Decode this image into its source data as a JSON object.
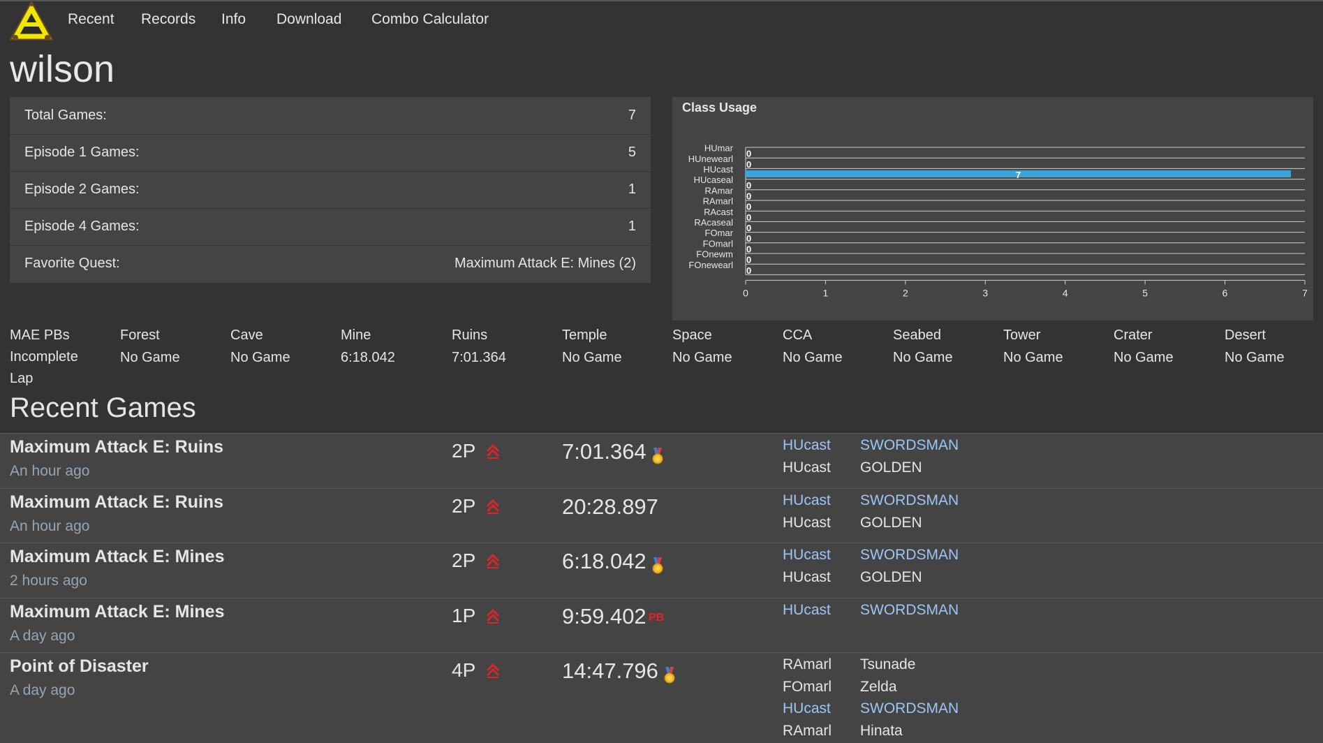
{
  "nav": {
    "items": [
      "Recent",
      "Records",
      "Info",
      "Download",
      "Combo Calculator"
    ]
  },
  "player": {
    "name": "wilson"
  },
  "stats": [
    {
      "label": "Total Games:",
      "value": "7"
    },
    {
      "label": "Episode 1 Games:",
      "value": "5"
    },
    {
      "label": "Episode 2 Games:",
      "value": "1"
    },
    {
      "label": "Episode 4 Games:",
      "value": "1"
    },
    {
      "label": "Favorite Quest:",
      "value": "Maximum Attack E: Mines (2)"
    }
  ],
  "chart_data": {
    "type": "bar",
    "orientation": "horizontal",
    "title": "Class Usage",
    "categories": [
      "HUmar",
      "HUnewearl",
      "HUcast",
      "HUcaseal",
      "RAmar",
      "RAmarl",
      "RAcast",
      "RAcaseal",
      "FOmar",
      "FOmarl",
      "FOnewm",
      "FOnewearl"
    ],
    "values": [
      0,
      0,
      7,
      0,
      0,
      0,
      0,
      0,
      0,
      0,
      0,
      0
    ],
    "xlim": [
      0,
      7
    ],
    "xticks": [
      "0",
      "1",
      "2",
      "3",
      "4",
      "5",
      "6",
      "7"
    ],
    "bar_color": "#3aa5d8",
    "grid": true
  },
  "pbs": {
    "header": [
      "MAE PBs",
      "Forest",
      "Cave",
      "Mine",
      "Ruins",
      "Temple",
      "Space",
      "CCA",
      "Seabed",
      "Tower",
      "Crater",
      "Desert"
    ],
    "values": [
      "Incomplete Lap",
      "No Game",
      "No Game",
      "6:18.042",
      "7:01.364",
      "No Game",
      "No Game",
      "No Game",
      "No Game",
      "No Game",
      "No Game",
      "No Game"
    ]
  },
  "recent": {
    "title": "Recent Games",
    "games": [
      {
        "quest": "Maximum Attack E: Ruins",
        "ago": "An hour ago",
        "players": "2P",
        "time": "7:01.364",
        "badge": "medal",
        "party": [
          {
            "cls": "HUcast",
            "name": "SWORDSMAN",
            "link": true
          },
          {
            "cls": "HUcast",
            "name": "GOLDEN",
            "link": false
          }
        ]
      },
      {
        "quest": "Maximum Attack E: Ruins",
        "ago": "An hour ago",
        "players": "2P",
        "time": "20:28.897",
        "badge": "",
        "party": [
          {
            "cls": "HUcast",
            "name": "SWORDSMAN",
            "link": true
          },
          {
            "cls": "HUcast",
            "name": "GOLDEN",
            "link": false
          }
        ]
      },
      {
        "quest": "Maximum Attack E: Mines",
        "ago": "2 hours ago",
        "players": "2P",
        "time": "6:18.042",
        "badge": "medal",
        "party": [
          {
            "cls": "HUcast",
            "name": "SWORDSMAN",
            "link": true
          },
          {
            "cls": "HUcast",
            "name": "GOLDEN",
            "link": false
          }
        ]
      },
      {
        "quest": "Maximum Attack E: Mines",
        "ago": "A day ago",
        "players": "1P",
        "time": "9:59.402",
        "badge": "PB",
        "party": [
          {
            "cls": "HUcast",
            "name": "SWORDSMAN",
            "link": true
          }
        ]
      },
      {
        "quest": "Point of Disaster",
        "ago": "A day ago",
        "players": "4P",
        "time": "14:47.796",
        "badge": "medal",
        "party": [
          {
            "cls": "RAmarl",
            "name": "Tsunade",
            "link": false
          },
          {
            "cls": "FOmarl",
            "name": "Zelda",
            "link": false
          },
          {
            "cls": "HUcast",
            "name": "SWORDSMAN",
            "link": true
          },
          {
            "cls": "RAmarl",
            "name": "Hinata",
            "link": false
          }
        ]
      }
    ]
  }
}
